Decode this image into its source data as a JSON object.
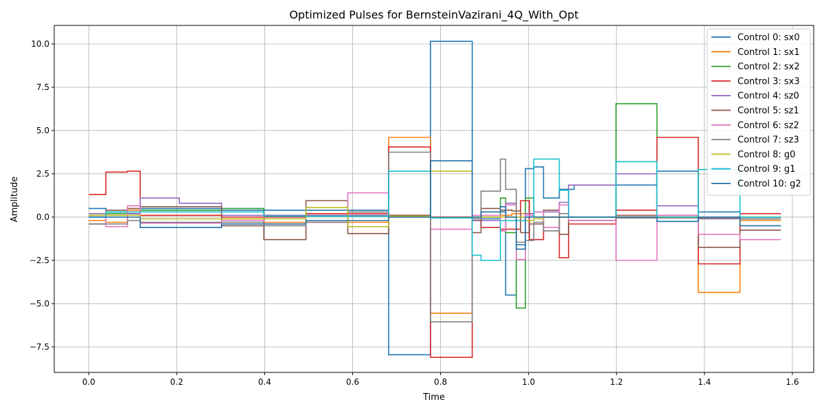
{
  "chart_data": {
    "type": "line",
    "title": "Optimized Pulses for BernsteinVazirani_4Q_With_Opt",
    "xlabel": "Time",
    "ylabel": "Amplitude",
    "xlim": [
      -0.0785,
      1.6485
    ],
    "ylim": [
      -8.97,
      11.07
    ],
    "xticks": [
      0.0,
      0.2,
      0.4,
      0.6,
      0.8,
      1.0,
      1.2,
      1.4,
      1.6
    ],
    "yticks": [
      -7.5,
      -5.0,
      -2.5,
      0.0,
      2.5,
      5.0,
      7.5,
      10.0
    ],
    "xtick_labels": [
      "0.0",
      "0.2",
      "0.4",
      "0.6",
      "0.8",
      "1.0",
      "1.2",
      "1.4",
      "1.6"
    ],
    "ytick_labels": [
      "−7.5",
      "−5.0",
      "−2.5",
      "0.0",
      "2.5",
      "5.0",
      "7.5",
      "10.0"
    ],
    "grid": true,
    "legend_position": "top-right",
    "step_style": "post",
    "time_edges": [
      0.0,
      0.039,
      0.068,
      0.088,
      0.117,
      0.206,
      0.302,
      0.398,
      0.494,
      0.589,
      0.682,
      0.777,
      0.872,
      0.892,
      0.912,
      0.936,
      0.948,
      0.962,
      0.972,
      0.982,
      0.993,
      1.002,
      1.012,
      1.034,
      1.057,
      1.07,
      1.08,
      1.091,
      1.104,
      1.199,
      1.292,
      1.386,
      1.481,
      1.574
    ],
    "series": [
      {
        "name": "Control 0: sx0",
        "color": "#1f77b4",
        "values": [
          0.5,
          0.3,
          0.3,
          0.2,
          0.5,
          0.5,
          0.4,
          0.4,
          0.4,
          0.4,
          -7.95,
          10.15,
          -0.1,
          -0.1,
          -0.1,
          0.3,
          -4.5,
          -4.5,
          -1.6,
          -1.6,
          2.8,
          2.8,
          2.9,
          1.1,
          1.1,
          1.6,
          1.6,
          1.6,
          1.85,
          1.85,
          2.65,
          0.3,
          0.0
        ]
      },
      {
        "name": "Control 1: sx1",
        "color": "#ff7f0e",
        "values": [
          -0.2,
          -0.3,
          -0.3,
          0.4,
          0.1,
          0.1,
          -0.1,
          -0.3,
          -0.3,
          -0.3,
          4.6,
          -5.55,
          -0.2,
          0.0,
          0.0,
          0.1,
          0.1,
          0.2,
          0.2,
          0.2,
          0.2,
          0.2,
          0.0,
          0.0,
          0.0,
          0.0,
          0.0,
          0.0,
          0.0,
          0.0,
          0.0,
          -4.35,
          -0.2
        ]
      },
      {
        "name": "Control 2: sx2",
        "color": "#2ca02c",
        "values": [
          0.1,
          0.2,
          0.2,
          0.2,
          0.4,
          0.4,
          0.5,
          0.1,
          0.1,
          0.1,
          0.1,
          0.0,
          0.0,
          0.0,
          0.0,
          1.1,
          -0.9,
          -0.9,
          -5.25,
          -5.25,
          1.1,
          1.1,
          0.0,
          0.0,
          0.0,
          0.0,
          0.0,
          0.0,
          0.0,
          6.55,
          0.1,
          0.0,
          -0.1
        ]
      },
      {
        "name": "Control 3: sx3",
        "color": "#d62728",
        "values": [
          1.3,
          2.6,
          2.6,
          2.65,
          0.1,
          0.1,
          0.0,
          0.0,
          0.2,
          0.2,
          4.05,
          -8.1,
          -0.2,
          -0.6,
          -0.6,
          -0.7,
          -0.7,
          -0.7,
          -0.7,
          0.95,
          0.95,
          -1.3,
          -1.3,
          0.0,
          0.0,
          -2.35,
          -2.35,
          -0.4,
          -0.4,
          0.4,
          4.6,
          -2.7,
          0.2
        ]
      },
      {
        "name": "Control 4: sz0",
        "color": "#9467bd",
        "values": [
          0.2,
          0.1,
          0.1,
          0.2,
          1.1,
          0.8,
          0.1,
          0.1,
          0.1,
          0.1,
          0.1,
          0.0,
          -0.2,
          -0.2,
          -0.2,
          -0.8,
          0.8,
          0.8,
          0.0,
          0.0,
          0.2,
          0.2,
          0.3,
          0.3,
          0.3,
          0.85,
          0.85,
          1.85,
          1.85,
          2.5,
          0.65,
          -0.05,
          -0.1
        ]
      },
      {
        "name": "Control 5: sz1",
        "color": "#8c564b",
        "values": [
          -0.4,
          0.4,
          0.4,
          0.5,
          0.6,
          0.6,
          -0.5,
          -1.3,
          0.95,
          -0.95,
          0.1,
          0.0,
          -0.9,
          0.5,
          0.5,
          0.4,
          0.4,
          0.35,
          0.35,
          -0.9,
          -0.9,
          -0.4,
          -0.4,
          0.4,
          0.4,
          -1.0,
          -1.0,
          -0.2,
          -0.2,
          0.1,
          0.1,
          -1.75,
          -0.75
        ]
      },
      {
        "name": "Control 6: sz2",
        "color": "#e377c2",
        "values": [
          0.0,
          -0.55,
          -0.55,
          0.65,
          -0.35,
          -0.35,
          -0.2,
          -0.4,
          -0.3,
          1.4,
          0.0,
          -0.7,
          0.1,
          0.1,
          0.1,
          -0.8,
          0.7,
          0.7,
          -2.45,
          -2.45,
          0.1,
          0.1,
          0.3,
          -0.6,
          -0.6,
          0.7,
          0.7,
          -0.2,
          -0.2,
          -2.5,
          0.1,
          -1.0,
          -1.3
        ]
      },
      {
        "name": "Control 7: sz3",
        "color": "#7f7f7f",
        "values": [
          -0.4,
          -0.4,
          -0.4,
          -0.2,
          -0.3,
          -0.3,
          -0.3,
          -0.5,
          -0.3,
          0.3,
          3.75,
          -6.05,
          -0.1,
          1.5,
          1.5,
          3.35,
          1.6,
          1.6,
          -1.45,
          -1.45,
          -1.35,
          -1.35,
          -0.3,
          -0.8,
          -0.8,
          0.2,
          0.2,
          0.0,
          0.0,
          -0.05,
          -0.05,
          -0.1,
          -0.1
        ]
      },
      {
        "name": "Control 8: g0",
        "color": "#bcbd22",
        "values": [
          0.1,
          0.1,
          0.1,
          0.1,
          -0.1,
          -0.1,
          -0.1,
          -0.1,
          0.55,
          -0.55,
          0.05,
          2.65,
          0.0,
          0.0,
          0.0,
          0.0,
          0.0,
          0.0,
          0.0,
          0.0,
          -0.2,
          -0.2,
          -0.1,
          0.0,
          0.0,
          0.0,
          0.0,
          0.0,
          0.0,
          0.0,
          0.0,
          0.0,
          0.0
        ]
      },
      {
        "name": "Control 9: g1",
        "color": "#17becf",
        "values": [
          0.0,
          0.3,
          0.3,
          0.3,
          0.3,
          0.3,
          0.3,
          0.05,
          0.05,
          0.05,
          2.65,
          -0.05,
          -2.2,
          -2.5,
          -2.5,
          -0.2,
          -0.2,
          -0.2,
          -0.2,
          -0.2,
          0.0,
          0.0,
          3.35,
          3.35,
          3.35,
          1.55,
          1.55,
          0.0,
          0.0,
          3.2,
          0.0,
          2.75,
          0.0
        ]
      },
      {
        "name": "Control 10: g2",
        "color": "#1f6fa8",
        "values": [
          0.0,
          0.0,
          0.0,
          0.0,
          -0.6,
          -0.6,
          -0.4,
          -0.4,
          -0.2,
          -0.2,
          0.0,
          3.25,
          0.0,
          0.3,
          0.3,
          0.6,
          0.0,
          0.0,
          -1.85,
          -1.85,
          0.0,
          0.0,
          0.0,
          0.0,
          0.0,
          0.0,
          0.0,
          0.0,
          0.0,
          0.0,
          -0.25,
          0.0,
          -0.5
        ]
      }
    ]
  }
}
